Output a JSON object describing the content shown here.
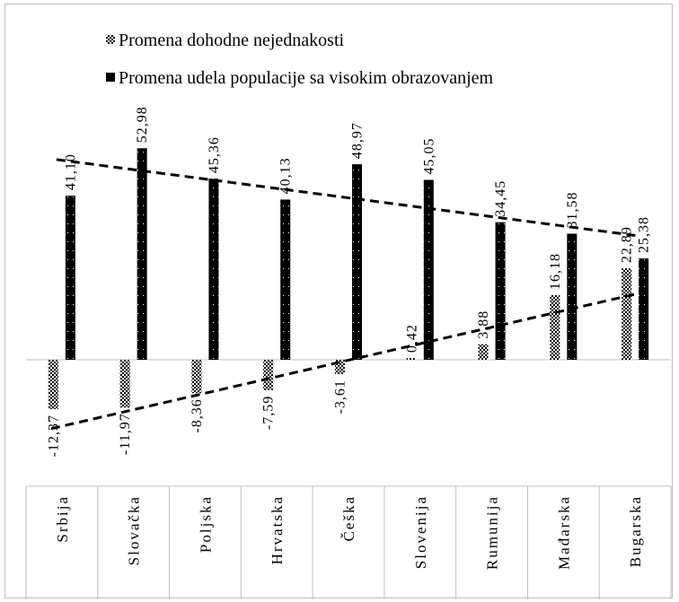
{
  "chart_data": {
    "type": "bar",
    "categories": [
      "Srbija",
      "Slovačka",
      "Poljska",
      "Hrvatska",
      "Češka",
      "Slovenija",
      "Rumunija",
      "Mađarska",
      "Bugarska"
    ],
    "series": [
      {
        "name": "Promena dohodne nejednakosti",
        "values": [
          -12.37,
          -11.97,
          -8.36,
          -7.59,
          -3.61,
          0.42,
          3.88,
          16.18,
          22.89
        ],
        "labels": [
          "-12,37",
          "-11,97",
          "-8,36",
          "-7,59",
          "-3,61",
          "0,42",
          "3,88",
          "16,18",
          "22,89"
        ],
        "pattern": "checkered",
        "color": "#000000"
      },
      {
        "name": "Promena udela populacije sa visokim obrazovanjem",
        "values": [
          41.1,
          52.98,
          45.36,
          40.13,
          48.97,
          45.05,
          34.45,
          31.58,
          25.38
        ],
        "labels": [
          "41,10",
          "52,98",
          "45,36",
          "40,13",
          "48,97",
          "45,05",
          "34,45",
          "31,58",
          "25,38"
        ],
        "pattern": "solid",
        "color": "#000000"
      }
    ],
    "trendlines": "linear, dashed, one per series",
    "legend": "top",
    "grid": false,
    "title": "",
    "xlabel": "",
    "ylabel": "",
    "ylim": [
      -30,
      60
    ]
  }
}
